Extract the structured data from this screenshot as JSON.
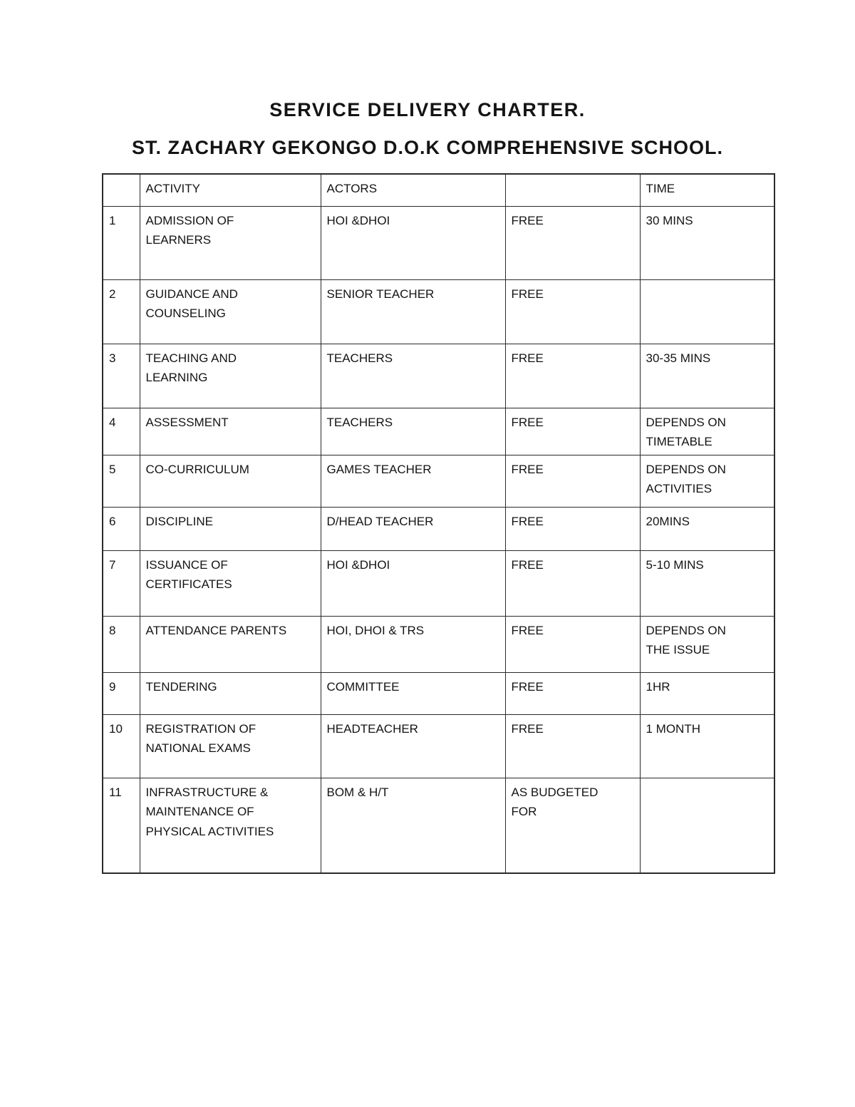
{
  "page": {
    "title": "SERVICE DELIVERY CHARTER.",
    "subtitle": "ST. ZACHARY GEKONGO D.O.K COMPREHENSIVE SCHOOL."
  },
  "table": {
    "headers": {
      "no": "",
      "activity": "ACTIVITY",
      "actors": "ACTORS",
      "cost": "",
      "time": "TIME"
    },
    "rows": [
      {
        "no": "1",
        "activity": "ADMISSION OF\nLEARNERS",
        "actors": "HOI &DHOI",
        "cost": "FREE",
        "time": "30 MINS"
      },
      {
        "no": "2",
        "activity": "GUIDANCE AND\nCOUNSELING",
        "actors": "SENIOR TEACHER",
        "cost": "FREE",
        "time": ""
      },
      {
        "no": "3",
        "activity": "TEACHING AND\nLEARNING",
        "actors": "TEACHERS",
        "cost": "FREE",
        "time": "30-35 MINS"
      },
      {
        "no": "4",
        "activity": "ASSESSMENT",
        "actors": "TEACHERS",
        "cost": "FREE",
        "time": "DEPENDS ON\nTIMETABLE"
      },
      {
        "no": "5",
        "activity": "CO-CURRICULUM",
        "actors": "GAMES TEACHER",
        "cost": "FREE",
        "time": "DEPENDS ON\nACTIVITIES"
      },
      {
        "no": "6",
        "activity": "DISCIPLINE",
        "actors": "D/HEAD TEACHER",
        "cost": "FREE",
        "time": "20MINS"
      },
      {
        "no": "7",
        "activity": "ISSUANCE OF\nCERTIFICATES",
        "actors": "HOI &DHOI",
        "cost": "FREE",
        "time": "5-10 MINS"
      },
      {
        "no": "8",
        "activity": "ATTENDANCE PARENTS",
        "actors": "HOI, DHOI & TRS",
        "cost": "FREE",
        "time": "DEPENDS ON\nTHE ISSUE"
      },
      {
        "no": "9",
        "activity": "TENDERING",
        "actors": "COMMITTEE",
        "cost": "FREE",
        "time": "1HR"
      },
      {
        "no": "10",
        "activity": "REGISTRATION OF\nNATIONAL EXAMS",
        "actors": "HEADTEACHER",
        "cost": "FREE",
        "time": "1 MONTH"
      },
      {
        "no": "11",
        "activity": "INFRASTRUCTURE &\nMAINTENANCE OF\nPHYSICAL ACTIVITIES",
        "actors": "BOM & H/T",
        "cost": "AS BUDGETED\nFOR",
        "time": ""
      }
    ]
  }
}
